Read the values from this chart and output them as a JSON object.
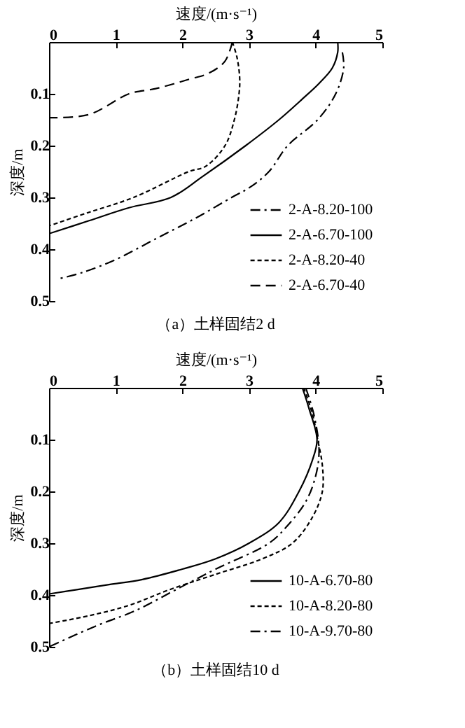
{
  "chart_data": [
    {
      "type": "line",
      "title": "（a）土样固结2 d",
      "xlabel": "速度/(m·s⁻¹)",
      "ylabel": "深度/m",
      "xlim": [
        0,
        5
      ],
      "xticks": [
        0,
        1,
        2,
        3,
        4,
        5
      ],
      "ylim": [
        0.5,
        0
      ],
      "yticks": [
        0.1,
        0.2,
        0.3,
        0.4,
        0.5
      ],
      "legend": "bottom right",
      "series": [
        {
          "name": "2-A-8.20-100",
          "color": "#000000",
          "line_style": "dashdot",
          "x": [
            4.4,
            4.42,
            4.3,
            4.03,
            3.58,
            3.3,
            3.02,
            2.74,
            2.2,
            1.6,
            1.0,
            0.5,
            0.15
          ],
          "values": [
            0.02,
            0.05,
            0.1,
            0.15,
            0.2,
            0.25,
            0.28,
            0.3,
            0.34,
            0.38,
            0.42,
            0.445,
            0.457
          ]
        },
        {
          "name": "2-A-6.70-100",
          "color": "#000000",
          "line_style": "solid",
          "x": [
            4.33,
            4.33,
            4.25,
            4.05,
            3.8,
            3.45,
            2.95,
            2.3,
            1.83,
            1.2,
            0.6,
            0
          ],
          "values": [
            0,
            0.02,
            0.05,
            0.08,
            0.11,
            0.15,
            0.2,
            0.26,
            0.3,
            0.32,
            0.345,
            0.37
          ]
        },
        {
          "name": "2-A-8.20-40",
          "color": "#000000",
          "line_style": "dotted",
          "x": [
            2.75,
            2.82,
            2.86,
            2.85,
            2.78,
            2.64,
            2.35,
            2.1,
            1.27,
            0.57,
            0
          ],
          "values": [
            0,
            0.03,
            0.07,
            0.1,
            0.15,
            0.2,
            0.24,
            0.25,
            0.3,
            0.33,
            0.355
          ]
        },
        {
          "name": "2-A-6.70-40",
          "color": "#000000",
          "line_style": "dashed",
          "x": [
            2.75,
            2.64,
            2.4,
            2.1,
            1.6,
            1.2,
            0.6,
            0
          ],
          "values": [
            0,
            0.037,
            0.06,
            0.072,
            0.09,
            0.1,
            0.14,
            0.146
          ]
        }
      ]
    },
    {
      "type": "line",
      "title": "（b）土样固结10 d",
      "xlabel": "速度/(m·s⁻¹)",
      "ylabel": "深度/m",
      "xlim": [
        0,
        5
      ],
      "xticks": [
        0,
        1,
        2,
        3,
        4,
        5
      ],
      "ylim": [
        0.5,
        0
      ],
      "yticks": [
        0.1,
        0.2,
        0.3,
        0.4,
        0.5
      ],
      "legend": "bottom right",
      "series": [
        {
          "name": "10-A-6.70-80",
          "color": "#000000",
          "line_style": "solid",
          "x": [
            3.8,
            3.9,
            4.02,
            3.95,
            3.75,
            3.45,
            3.0,
            2.5,
            2.0,
            1.4,
            0.9,
            0.4,
            0
          ],
          "values": [
            0,
            0.04,
            0.1,
            0.14,
            0.2,
            0.26,
            0.3,
            0.33,
            0.35,
            0.37,
            0.38,
            0.39,
            0.398
          ]
        },
        {
          "name": "10-A-8.20-80",
          "color": "#000000",
          "line_style": "dotted",
          "x": [
            3.82,
            3.95,
            4.03,
            4.1,
            4.1,
            3.95,
            3.65,
            3.2,
            2.5,
            1.8,
            1.2,
            0.6,
            0
          ],
          "values": [
            0,
            0.05,
            0.1,
            0.15,
            0.2,
            0.25,
            0.3,
            0.33,
            0.36,
            0.39,
            0.42,
            0.44,
            0.455
          ]
        },
        {
          "name": "10-A-9.70-80",
          "color": "#000000",
          "line_style": "dashdot",
          "x": [
            3.85,
            3.97,
            4.05,
            4.0,
            3.85,
            3.55,
            3.3,
            2.5,
            1.9,
            1.3,
            0.7,
            0
          ],
          "values": [
            0,
            0.05,
            0.12,
            0.17,
            0.22,
            0.27,
            0.3,
            0.35,
            0.39,
            0.43,
            0.46,
            0.5
          ]
        }
      ]
    }
  ]
}
